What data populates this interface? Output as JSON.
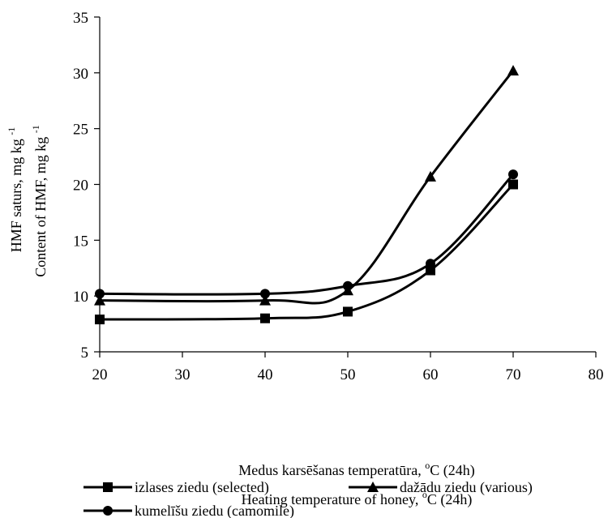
{
  "chart_data": {
    "type": "line",
    "x_axis": {
      "range": [
        20,
        80
      ],
      "ticks": [
        "20",
        "30",
        "40",
        "50",
        "60",
        "70",
        "80"
      ],
      "label_line1": {
        "pre": "Medus karsēšanas temperatūra, ",
        "sup": "o",
        "post": "C (24h)"
      },
      "label_line2": {
        "pre": "Heating temperature of honey, ",
        "sup": "o",
        "post": "C (24h)"
      }
    },
    "y_axis": {
      "range": [
        5,
        35
      ],
      "ticks": [
        "5",
        "10",
        "15",
        "20",
        "25",
        "30",
        "35"
      ],
      "label_line1": {
        "pre": "HMF saturs, mg kg ",
        "sup": "-1"
      },
      "label_line2": {
        "pre": "Content of HMF, mg kg ",
        "sup": "-1"
      }
    },
    "grid": false,
    "legend_position": "bottom",
    "series": [
      {
        "name": "izlases ziedu (selected)",
        "marker": "square",
        "x": [
          20,
          40,
          50,
          60,
          70
        ],
        "y": [
          7.9,
          8.0,
          8.6,
          12.3,
          20.0
        ]
      },
      {
        "name": "dažādu ziedu (various)",
        "marker": "triangle",
        "x": [
          20,
          40,
          50,
          60,
          70
        ],
        "y": [
          9.6,
          9.6,
          10.5,
          20.7,
          30.2
        ]
      },
      {
        "name": "kumelīšu ziedu (camomile)",
        "marker": "circle",
        "x": [
          20,
          40,
          50,
          60,
          70
        ],
        "y": [
          10.2,
          10.2,
          10.9,
          12.9,
          20.9
        ]
      }
    ]
  }
}
